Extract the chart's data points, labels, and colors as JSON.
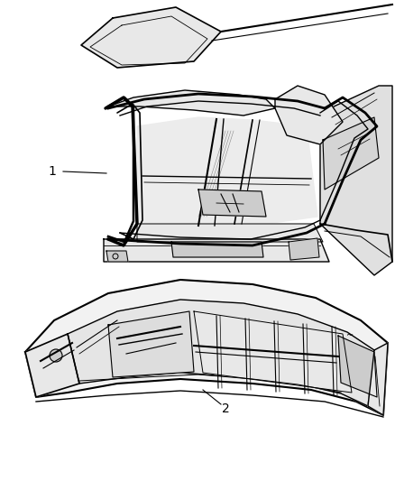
{
  "background_color": "#ffffff",
  "fig_width": 4.38,
  "fig_height": 5.33,
  "dpi": 100,
  "label_1": "1",
  "label_2": "2",
  "line_color": "#000000",
  "dark_color": "#1a1a1a",
  "mid_color": "#555555",
  "light_fill": "#f8f8f8",
  "mid_fill": "#e8e8e8",
  "dark_fill": "#cccccc"
}
